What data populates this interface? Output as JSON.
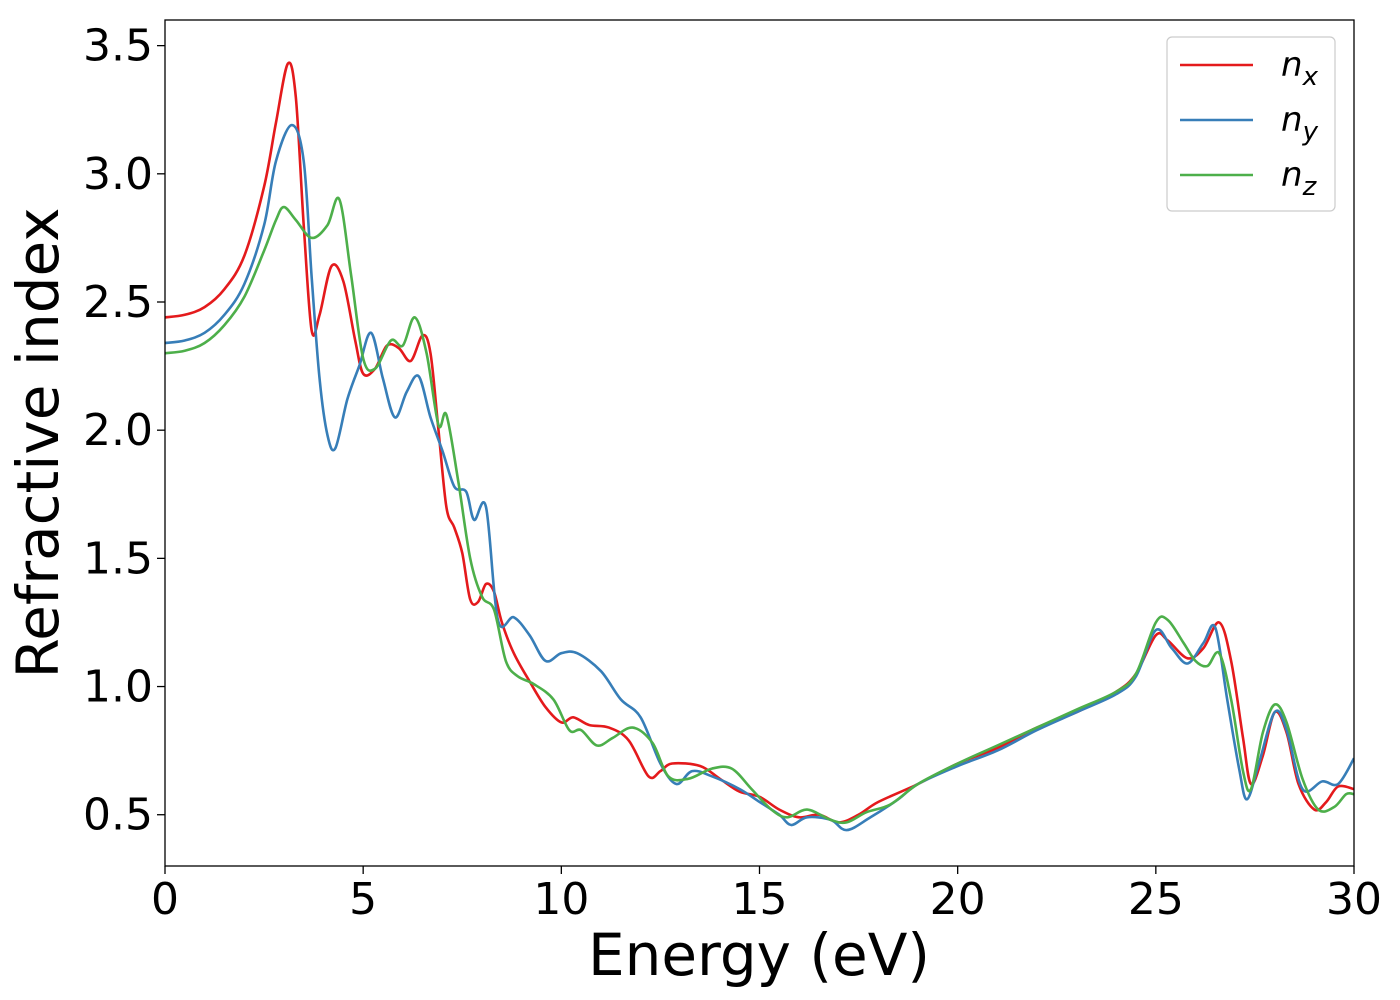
{
  "chart_data": {
    "type": "line",
    "xlabel": "Energy (eV)",
    "ylabel": "Refractive index",
    "xlim": [
      0,
      30
    ],
    "ylim": [
      0.3,
      3.6
    ],
    "xticks": [
      "0",
      "5",
      "10",
      "15",
      "20",
      "25",
      "30"
    ],
    "yticks": [
      "0.5",
      "1.0",
      "1.5",
      "2.0",
      "2.5",
      "3.0",
      "3.5"
    ],
    "grid": false,
    "legend_position": "top-right",
    "series": [
      {
        "name": "n",
        "sub": "x",
        "color": "#e41a1c",
        "points": [
          [
            0,
            2.44
          ],
          [
            0.5,
            2.45
          ],
          [
            1,
            2.48
          ],
          [
            1.5,
            2.55
          ],
          [
            2,
            2.68
          ],
          [
            2.5,
            2.95
          ],
          [
            2.8,
            3.2
          ],
          [
            3.1,
            3.43
          ],
          [
            3.3,
            3.3
          ],
          [
            3.5,
            2.8
          ],
          [
            3.7,
            2.39
          ],
          [
            3.9,
            2.45
          ],
          [
            4.2,
            2.64
          ],
          [
            4.5,
            2.58
          ],
          [
            4.8,
            2.35
          ],
          [
            5.0,
            2.22
          ],
          [
            5.3,
            2.24
          ],
          [
            5.6,
            2.33
          ],
          [
            5.9,
            2.32
          ],
          [
            6.2,
            2.27
          ],
          [
            6.5,
            2.37
          ],
          [
            6.7,
            2.3
          ],
          [
            6.9,
            2.0
          ],
          [
            7.1,
            1.7
          ],
          [
            7.3,
            1.62
          ],
          [
            7.5,
            1.52
          ],
          [
            7.7,
            1.34
          ],
          [
            7.9,
            1.33
          ],
          [
            8.1,
            1.4
          ],
          [
            8.3,
            1.37
          ],
          [
            8.5,
            1.25
          ],
          [
            8.8,
            1.13
          ],
          [
            9.2,
            1.02
          ],
          [
            9.6,
            0.92
          ],
          [
            10.0,
            0.86
          ],
          [
            10.3,
            0.88
          ],
          [
            10.7,
            0.85
          ],
          [
            11.2,
            0.84
          ],
          [
            11.7,
            0.79
          ],
          [
            12.2,
            0.65
          ],
          [
            12.5,
            0.67
          ],
          [
            12.8,
            0.7
          ],
          [
            13.5,
            0.69
          ],
          [
            14.0,
            0.64
          ],
          [
            14.5,
            0.59
          ],
          [
            15.0,
            0.57
          ],
          [
            15.5,
            0.52
          ],
          [
            16.0,
            0.49
          ],
          [
            16.5,
            0.5
          ],
          [
            17.0,
            0.47
          ],
          [
            17.5,
            0.5
          ],
          [
            18.0,
            0.55
          ],
          [
            19.0,
            0.62
          ],
          [
            20.0,
            0.7
          ],
          [
            21.0,
            0.76
          ],
          [
            22.0,
            0.84
          ],
          [
            23.0,
            0.9
          ],
          [
            24.0,
            0.98
          ],
          [
            24.5,
            1.05
          ],
          [
            25.0,
            1.2
          ],
          [
            25.3,
            1.18
          ],
          [
            25.8,
            1.11
          ],
          [
            26.2,
            1.15
          ],
          [
            26.6,
            1.25
          ],
          [
            26.9,
            1.1
          ],
          [
            27.2,
            0.8
          ],
          [
            27.4,
            0.62
          ],
          [
            27.7,
            0.73
          ],
          [
            28.0,
            0.9
          ],
          [
            28.3,
            0.82
          ],
          [
            28.6,
            0.62
          ],
          [
            29.0,
            0.52
          ],
          [
            29.3,
            0.55
          ],
          [
            29.6,
            0.61
          ],
          [
            30.0,
            0.6
          ]
        ]
      },
      {
        "name": "n",
        "sub": "y",
        "color": "#377eb8",
        "points": [
          [
            0,
            2.34
          ],
          [
            0.5,
            2.35
          ],
          [
            1,
            2.38
          ],
          [
            1.5,
            2.45
          ],
          [
            2,
            2.57
          ],
          [
            2.5,
            2.8
          ],
          [
            2.8,
            3.05
          ],
          [
            3.2,
            3.19
          ],
          [
            3.5,
            3.05
          ],
          [
            3.7,
            2.6
          ],
          [
            3.9,
            2.2
          ],
          [
            4.1,
            1.98
          ],
          [
            4.3,
            1.93
          ],
          [
            4.6,
            2.12
          ],
          [
            4.9,
            2.25
          ],
          [
            5.2,
            2.38
          ],
          [
            5.5,
            2.2
          ],
          [
            5.8,
            2.05
          ],
          [
            6.1,
            2.15
          ],
          [
            6.4,
            2.21
          ],
          [
            6.7,
            2.05
          ],
          [
            7.0,
            1.92
          ],
          [
            7.3,
            1.78
          ],
          [
            7.6,
            1.76
          ],
          [
            7.8,
            1.65
          ],
          [
            8.1,
            1.7
          ],
          [
            8.4,
            1.26
          ],
          [
            8.8,
            1.27
          ],
          [
            9.2,
            1.2
          ],
          [
            9.6,
            1.1
          ],
          [
            10.0,
            1.13
          ],
          [
            10.4,
            1.13
          ],
          [
            11.0,
            1.06
          ],
          [
            11.5,
            0.95
          ],
          [
            12.0,
            0.88
          ],
          [
            12.5,
            0.7
          ],
          [
            12.9,
            0.62
          ],
          [
            13.3,
            0.67
          ],
          [
            13.8,
            0.65
          ],
          [
            14.5,
            0.6
          ],
          [
            15.0,
            0.55
          ],
          [
            15.5,
            0.5
          ],
          [
            15.8,
            0.46
          ],
          [
            16.2,
            0.49
          ],
          [
            16.8,
            0.48
          ],
          [
            17.2,
            0.44
          ],
          [
            17.8,
            0.49
          ],
          [
            18.5,
            0.56
          ],
          [
            19.0,
            0.62
          ],
          [
            20.0,
            0.69
          ],
          [
            21.0,
            0.75
          ],
          [
            22.0,
            0.83
          ],
          [
            23.0,
            0.9
          ],
          [
            24.0,
            0.97
          ],
          [
            24.5,
            1.04
          ],
          [
            25.0,
            1.22
          ],
          [
            25.4,
            1.15
          ],
          [
            25.8,
            1.09
          ],
          [
            26.2,
            1.17
          ],
          [
            26.5,
            1.23
          ],
          [
            26.8,
            0.95
          ],
          [
            27.1,
            0.68
          ],
          [
            27.3,
            0.56
          ],
          [
            27.6,
            0.7
          ],
          [
            28.0,
            0.9
          ],
          [
            28.3,
            0.83
          ],
          [
            28.7,
            0.6
          ],
          [
            29.2,
            0.63
          ],
          [
            29.6,
            0.62
          ],
          [
            30.0,
            0.72
          ]
        ]
      },
      {
        "name": "n",
        "sub": "z",
        "color": "#4daf4a",
        "points": [
          [
            0,
            2.3
          ],
          [
            0.5,
            2.31
          ],
          [
            1,
            2.34
          ],
          [
            1.5,
            2.41
          ],
          [
            2,
            2.52
          ],
          [
            2.5,
            2.7
          ],
          [
            2.8,
            2.82
          ],
          [
            3.0,
            2.87
          ],
          [
            3.3,
            2.82
          ],
          [
            3.7,
            2.75
          ],
          [
            4.1,
            2.8
          ],
          [
            4.4,
            2.9
          ],
          [
            4.7,
            2.6
          ],
          [
            5.0,
            2.28
          ],
          [
            5.3,
            2.24
          ],
          [
            5.7,
            2.35
          ],
          [
            6.0,
            2.33
          ],
          [
            6.3,
            2.44
          ],
          [
            6.6,
            2.3
          ],
          [
            6.9,
            2.02
          ],
          [
            7.1,
            2.06
          ],
          [
            7.4,
            1.8
          ],
          [
            7.7,
            1.5
          ],
          [
            8.0,
            1.35
          ],
          [
            8.3,
            1.3
          ],
          [
            8.6,
            1.1
          ],
          [
            8.9,
            1.04
          ],
          [
            9.3,
            1.01
          ],
          [
            9.8,
            0.95
          ],
          [
            10.2,
            0.83
          ],
          [
            10.5,
            0.83
          ],
          [
            10.9,
            0.77
          ],
          [
            11.3,
            0.8
          ],
          [
            11.8,
            0.84
          ],
          [
            12.3,
            0.78
          ],
          [
            12.7,
            0.65
          ],
          [
            13.2,
            0.64
          ],
          [
            13.8,
            0.68
          ],
          [
            14.3,
            0.68
          ],
          [
            14.8,
            0.6
          ],
          [
            15.3,
            0.52
          ],
          [
            15.7,
            0.49
          ],
          [
            16.2,
            0.52
          ],
          [
            16.8,
            0.48
          ],
          [
            17.2,
            0.47
          ],
          [
            17.7,
            0.51
          ],
          [
            18.3,
            0.54
          ],
          [
            19.0,
            0.62
          ],
          [
            20.0,
            0.7
          ],
          [
            21.0,
            0.77
          ],
          [
            22.0,
            0.84
          ],
          [
            23.0,
            0.91
          ],
          [
            24.0,
            0.98
          ],
          [
            24.5,
            1.05
          ],
          [
            25.0,
            1.25
          ],
          [
            25.3,
            1.26
          ],
          [
            25.7,
            1.17
          ],
          [
            26.0,
            1.1
          ],
          [
            26.3,
            1.08
          ],
          [
            26.6,
            1.13
          ],
          [
            26.9,
            0.95
          ],
          [
            27.2,
            0.67
          ],
          [
            27.4,
            0.6
          ],
          [
            27.7,
            0.82
          ],
          [
            28.0,
            0.93
          ],
          [
            28.3,
            0.86
          ],
          [
            28.7,
            0.64
          ],
          [
            29.1,
            0.52
          ],
          [
            29.5,
            0.53
          ],
          [
            29.8,
            0.58
          ],
          [
            30.0,
            0.58
          ]
        ]
      }
    ]
  }
}
